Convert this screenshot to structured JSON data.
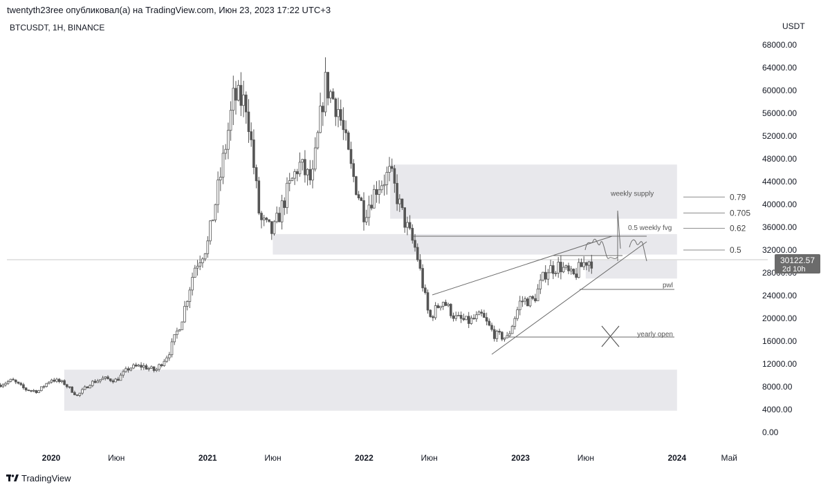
{
  "header": {
    "author": "twentyth23ree",
    "published_text": "опубликовал(а) на TradingView.com, Июн 23, 2023 17:22 UTC+3"
  },
  "symbol_line": "BTCUSDT, 1H, BINANCE",
  "currency": "USDT",
  "price_badge": {
    "price": "30122.57",
    "countdown": "2d 10h"
  },
  "footer": {
    "brand": "TradingView",
    "logo_icon": "tradingview-logo-icon"
  },
  "colors": {
    "candle": "#555555",
    "zone": "#e8e8ec",
    "line": "#6a6a6a",
    "badge": "#6b6b6b"
  },
  "chart_data": {
    "type": "candlestick",
    "title": "BTCUSDT, 1H, BINANCE",
    "ylim": [
      0,
      70000
    ],
    "xlim": [
      "2019-09",
      "2024-09"
    ],
    "grid": false,
    "y_ticks": [
      "0.00",
      "4000.00",
      "8000.00",
      "12000.00",
      "16000.00",
      "20000.00",
      "24000.00",
      "28000.00",
      "32000.00",
      "36000.00",
      "40000.00",
      "44000.00",
      "48000.00",
      "52000.00",
      "56000.00",
      "60000.00",
      "64000.00",
      "68000.00"
    ],
    "x_ticks": [
      {
        "date": "2020-01",
        "label": "2020"
      },
      {
        "date": "2020-06",
        "label": "Июн"
      },
      {
        "date": "2021-01",
        "label": "2021"
      },
      {
        "date": "2021-06",
        "label": "Июн"
      },
      {
        "date": "2022-01",
        "label": "2022"
      },
      {
        "date": "2022-06",
        "label": "Июн"
      },
      {
        "date": "2023-01",
        "label": "2023"
      },
      {
        "date": "2023-06",
        "label": "Июн"
      },
      {
        "date": "2024-01",
        "label": "2024"
      },
      {
        "date": "2024-05",
        "label": "Май"
      }
    ],
    "last_price": 30122.57,
    "series": [
      {
        "date": "2019-09",
        "close": 8300
      },
      {
        "date": "2019-10",
        "close": 9150
      },
      {
        "date": "2019-11",
        "close": 7550
      },
      {
        "date": "2019-12",
        "close": 7200
      },
      {
        "date": "2020-01",
        "close": 9350
      },
      {
        "date": "2020-02",
        "close": 8600
      },
      {
        "date": "2020-03",
        "close": 6400
      },
      {
        "date": "2020-04",
        "close": 8650
      },
      {
        "date": "2020-05",
        "close": 9450
      },
      {
        "date": "2020-06",
        "close": 9150
      },
      {
        "date": "2020-07",
        "close": 11350
      },
      {
        "date": "2020-08",
        "close": 11650
      },
      {
        "date": "2020-09",
        "close": 10800
      },
      {
        "date": "2020-10",
        "close": 13800
      },
      {
        "date": "2020-11",
        "close": 19700
      },
      {
        "date": "2020-12",
        "close": 29000
      },
      {
        "date": "2021-01",
        "close": 33100
      },
      {
        "date": "2021-02",
        "close": 45200
      },
      {
        "date": "2021-03",
        "close": 58800
      },
      {
        "date": "2021-04",
        "close": 57700
      },
      {
        "date": "2021-05",
        "close": 37300
      },
      {
        "date": "2021-06",
        "close": 35000
      },
      {
        "date": "2021-07",
        "close": 41500
      },
      {
        "date": "2021-08",
        "close": 47100
      },
      {
        "date": "2021-09",
        "close": 43800
      },
      {
        "date": "2021-10",
        "close": 61300
      },
      {
        "date": "2021-11",
        "close": 57000
      },
      {
        "date": "2021-12",
        "close": 46200
      },
      {
        "date": "2022-01",
        "close": 38500
      },
      {
        "date": "2022-02",
        "close": 43200
      },
      {
        "date": "2022-03",
        "close": 45500
      },
      {
        "date": "2022-04",
        "close": 37700
      },
      {
        "date": "2022-05",
        "close": 31800
      },
      {
        "date": "2022-06",
        "close": 19900
      },
      {
        "date": "2022-07",
        "close": 23300
      },
      {
        "date": "2022-08",
        "close": 20050
      },
      {
        "date": "2022-09",
        "close": 19400
      },
      {
        "date": "2022-10",
        "close": 20500
      },
      {
        "date": "2022-11",
        "close": 17150
      },
      {
        "date": "2022-12",
        "close": 16550
      },
      {
        "date": "2023-01",
        "close": 23100
      },
      {
        "date": "2023-02",
        "close": 23150
      },
      {
        "date": "2023-03",
        "close": 28500
      },
      {
        "date": "2023-04",
        "close": 29250
      },
      {
        "date": "2023-05",
        "close": 27200
      },
      {
        "date": "2023-06",
        "close": 30100
      }
    ],
    "zones": [
      {
        "from": "2022-03",
        "to": "2024-01",
        "low": 37500,
        "high": 47000
      },
      {
        "from": "2021-06",
        "to": "2024-01",
        "low": 31200,
        "high": 34800
      },
      {
        "from": "2023-06",
        "to": "2024-01",
        "low": 27000,
        "high": 30200
      },
      {
        "from": "2020-02",
        "to": "2024-01",
        "low": 3800,
        "high": 11000
      }
    ],
    "fib_levels": [
      {
        "label": "0.79",
        "value": 41300
      },
      {
        "label": "0.705",
        "value": 38500
      },
      {
        "label": "0.62",
        "value": 35800
      },
      {
        "label": "0.5",
        "value": 32000
      }
    ],
    "annotations": [
      {
        "text": "weekly supply",
        "value": 41300
      },
      {
        "text": "0.5 weekly fvg",
        "value": 35300
      },
      {
        "text": "pwl",
        "value": 25200
      },
      {
        "text": "yearly open",
        "value": 16600
      }
    ]
  }
}
